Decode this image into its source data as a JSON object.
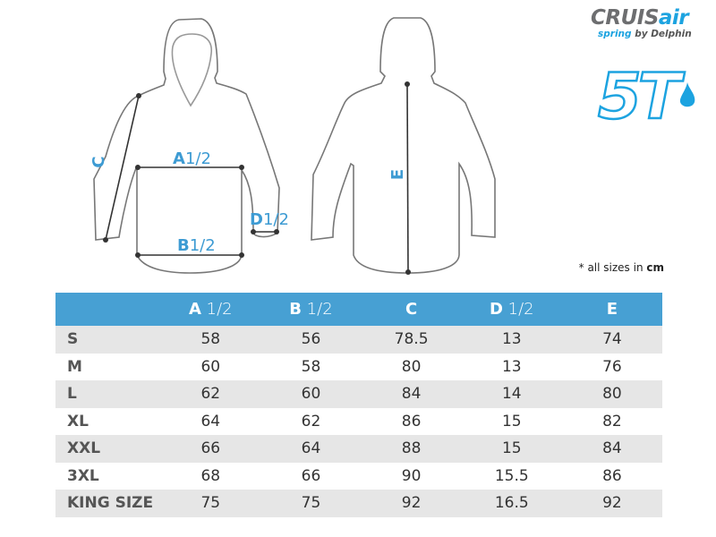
{
  "logo": {
    "brand_a": "CRUIS",
    "brand_b": "air",
    "sub_a": "spring",
    "sub_b": " by Delphin",
    "model": "5T"
  },
  "diagram": {
    "A": "A",
    "B": "B",
    "C": "C",
    "D": "D",
    "E": "E",
    "half": "1/2"
  },
  "note": {
    "text": "* all sizes in ",
    "unit": "cm"
  },
  "colors": {
    "header": "#47a0d3",
    "accent": "#1ca3e0",
    "stripe": "#e6e6e6"
  },
  "table": {
    "headers": [
      {
        "letter": "A",
        "suffix": "1/2"
      },
      {
        "letter": "B",
        "suffix": "1/2"
      },
      {
        "letter": "C",
        "suffix": ""
      },
      {
        "letter": "D",
        "suffix": "1/2"
      },
      {
        "letter": "E",
        "suffix": ""
      }
    ],
    "rows": [
      {
        "size": "S",
        "values": [
          "58",
          "56",
          "78.5",
          "13",
          "74"
        ]
      },
      {
        "size": "M",
        "values": [
          "60",
          "58",
          "80",
          "13",
          "76"
        ]
      },
      {
        "size": "L",
        "values": [
          "62",
          "60",
          "84",
          "14",
          "80"
        ]
      },
      {
        "size": "XL",
        "values": [
          "64",
          "62",
          "86",
          "15",
          "82"
        ]
      },
      {
        "size": "XXL",
        "values": [
          "66",
          "64",
          "88",
          "15",
          "84"
        ]
      },
      {
        "size": "3XL",
        "values": [
          "68",
          "66",
          "90",
          "15.5",
          "86"
        ]
      },
      {
        "size": "KING SIZE",
        "values": [
          "75",
          "75",
          "92",
          "16.5",
          "92"
        ]
      }
    ]
  }
}
